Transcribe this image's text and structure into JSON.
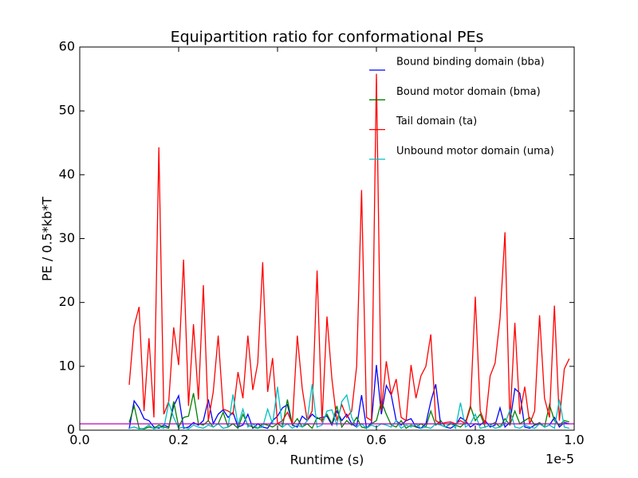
{
  "chart_data": {
    "type": "line",
    "title": "Equipartition ratio for conformational PEs",
    "x_label": "Runtime (s)",
    "y_label": "PE / 0.5*kb*T",
    "x_offset_text": "1e-5",
    "xlim": [
      0,
      1
    ],
    "ylim": [
      0,
      60
    ],
    "xticks": [
      {
        "value": 0,
        "label": "0.0"
      },
      0.2,
      0.4,
      0.6,
      0.8,
      {
        "value": 1,
        "label": "1.0"
      }
    ],
    "yticks": [
      0,
      10,
      20,
      30,
      40,
      50,
      60
    ],
    "legend": "upper right",
    "reference_line": {
      "value": 1,
      "color": "#bf00bf"
    },
    "x": [
      0.1,
      0.11,
      0.12,
      0.13,
      0.14,
      0.15,
      0.16,
      0.17,
      0.18,
      0.19,
      0.2,
      0.21,
      0.22,
      0.23,
      0.24,
      0.25,
      0.26,
      0.27,
      0.28,
      0.29,
      0.3,
      0.31,
      0.32,
      0.33,
      0.34,
      0.35,
      0.36,
      0.37,
      0.38,
      0.39,
      0.4,
      0.41,
      0.42,
      0.43,
      0.44,
      0.45,
      0.46,
      0.47,
      0.48,
      0.49,
      0.5,
      0.51,
      0.52,
      0.53,
      0.54,
      0.55,
      0.56,
      0.57,
      0.58,
      0.59,
      0.6,
      0.61,
      0.62,
      0.63,
      0.64,
      0.65,
      0.66,
      0.67,
      0.68,
      0.69,
      0.7,
      0.71,
      0.72,
      0.73,
      0.74,
      0.75,
      0.76,
      0.77,
      0.78,
      0.79,
      0.8,
      0.81,
      0.82,
      0.83,
      0.84,
      0.85,
      0.86,
      0.87,
      0.88,
      0.89,
      0.9,
      0.91,
      0.92,
      0.93,
      0.94,
      0.95,
      0.96,
      0.97,
      0.98,
      0.99
    ],
    "series": [
      {
        "name": "Bound binding domain (bba)",
        "color": "#0000ff",
        "values": [
          0.2,
          4.6,
          3.5,
          1.8,
          1.5,
          0.5,
          0.3,
          0.8,
          0.5,
          3.8,
          5.4,
          0.3,
          0.5,
          1.2,
          0.8,
          1.5,
          4.8,
          1.0,
          2.5,
          3.2,
          2.0,
          2.8,
          0.5,
          0.8,
          2.5,
          0.3,
          1.0,
          0.5,
          0.3,
          1.5,
          2.2,
          3.5,
          4.0,
          0.8,
          0.5,
          2.2,
          1.5,
          2.5,
          1.8,
          2.0,
          2.2,
          0.8,
          3.0,
          1.5,
          2.5,
          1.0,
          0.5,
          5.5,
          0.3,
          1.2,
          10.2,
          2.5,
          7.0,
          5.5,
          1.5,
          0.8,
          1.5,
          1.8,
          0.5,
          0.3,
          1.0,
          4.5,
          7.2,
          0.8,
          0.5,
          0.3,
          0.8,
          2.0,
          1.5,
          0.5,
          1.0,
          0.8,
          1.5,
          0.5,
          0.8,
          3.5,
          0.5,
          1.2,
          6.5,
          5.8,
          0.5,
          0.3,
          0.8,
          1.0,
          0.5,
          0.8,
          2.0,
          0.5,
          1.2,
          1.0
        ]
      },
      {
        "name": "Bound motor domain (bma)",
        "color": "#008000",
        "values": [
          1.2,
          3.8,
          0.3,
          0.2,
          0.5,
          0.3,
          0.8,
          0.5,
          0.3,
          4.5,
          0.5,
          2.0,
          2.2,
          5.8,
          1.0,
          0.8,
          1.5,
          0.5,
          1.0,
          2.8,
          0.5,
          1.0,
          0.3,
          2.5,
          0.8,
          0.5,
          0.3,
          1.0,
          0.8,
          0.5,
          1.0,
          0.5,
          4.8,
          0.8,
          1.8,
          0.5,
          1.0,
          0.3,
          2.0,
          1.5,
          2.5,
          1.0,
          3.8,
          0.5,
          1.5,
          0.8,
          2.0,
          0.5,
          0.3,
          1.0,
          1.5,
          4.5,
          2.5,
          0.8,
          0.5,
          1.5,
          0.3,
          0.8,
          0.5,
          1.0,
          0.5,
          3.0,
          0.8,
          1.5,
          0.5,
          1.0,
          0.8,
          0.5,
          1.2,
          3.8,
          1.5,
          2.5,
          0.5,
          0.8,
          1.2,
          0.5,
          1.8,
          0.8,
          3.0,
          1.0,
          1.5,
          2.0,
          0.8,
          1.2,
          0.5,
          4.0,
          1.5,
          0.8,
          1.5,
          1.3
        ]
      },
      {
        "name": "Tail domain (ta)",
        "color": "#ff0000",
        "values": [
          7.1,
          16.3,
          19.3,
          3.0,
          14.4,
          2.0,
          44.3,
          2.5,
          4.5,
          16.1,
          10.2,
          26.7,
          3.8,
          16.6,
          4.8,
          22.7,
          1.5,
          6.0,
          14.8,
          3.3,
          3.0,
          2.5,
          9.1,
          5.0,
          14.8,
          6.3,
          10.5,
          26.3,
          6.0,
          11.3,
          1.0,
          1.5,
          2.8,
          1.0,
          14.8,
          6.5,
          1.5,
          3.0,
          25.0,
          1.2,
          17.8,
          8.0,
          1.5,
          4.0,
          2.0,
          3.0,
          10.0,
          37.6,
          2.0,
          1.5,
          55.8,
          3.0,
          10.8,
          5.5,
          8.0,
          2.0,
          1.5,
          10.2,
          5.0,
          8.5,
          10.0,
          15.0,
          1.5,
          1.0,
          1.2,
          1.3,
          1.0,
          1.5,
          1.0,
          3.5,
          20.9,
          3.0,
          1.0,
          8.5,
          10.5,
          17.5,
          31.0,
          1.2,
          16.8,
          2.5,
          6.8,
          1.0,
          3.0,
          18.0,
          5.0,
          2.0,
          19.5,
          1.5,
          9.6,
          11.2
        ]
      },
      {
        "name": "Unbound motor domain (uma)",
        "color": "#00bfbf",
        "values": [
          0.3,
          0.5,
          0.2,
          0.3,
          0.8,
          0.2,
          0.5,
          0.3,
          4.3,
          2.0,
          0.3,
          0.5,
          0.2,
          0.8,
          0.5,
          0.3,
          0.8,
          0.5,
          1.0,
          0.3,
          0.5,
          5.6,
          0.8,
          3.3,
          0.5,
          1.0,
          0.3,
          0.5,
          3.3,
          1.0,
          6.8,
          0.5,
          1.0,
          0.3,
          0.8,
          0.5,
          1.5,
          7.2,
          0.5,
          0.8,
          3.0,
          3.2,
          0.8,
          4.5,
          5.5,
          2.0,
          0.5,
          1.0,
          0.3,
          0.8,
          0.5,
          1.0,
          0.8,
          0.5,
          1.5,
          0.3,
          0.8,
          0.5,
          1.0,
          0.3,
          0.5,
          0.3,
          1.0,
          0.8,
          0.5,
          1.2,
          0.3,
          4.3,
          0.5,
          1.0,
          2.5,
          0.3,
          0.5,
          0.8,
          0.3,
          0.5,
          1.0,
          3.2,
          0.5,
          0.3,
          0.8,
          0.5,
          0.3,
          1.0,
          0.5,
          0.8,
          0.3,
          4.8,
          0.5,
          0.3
        ]
      }
    ]
  }
}
